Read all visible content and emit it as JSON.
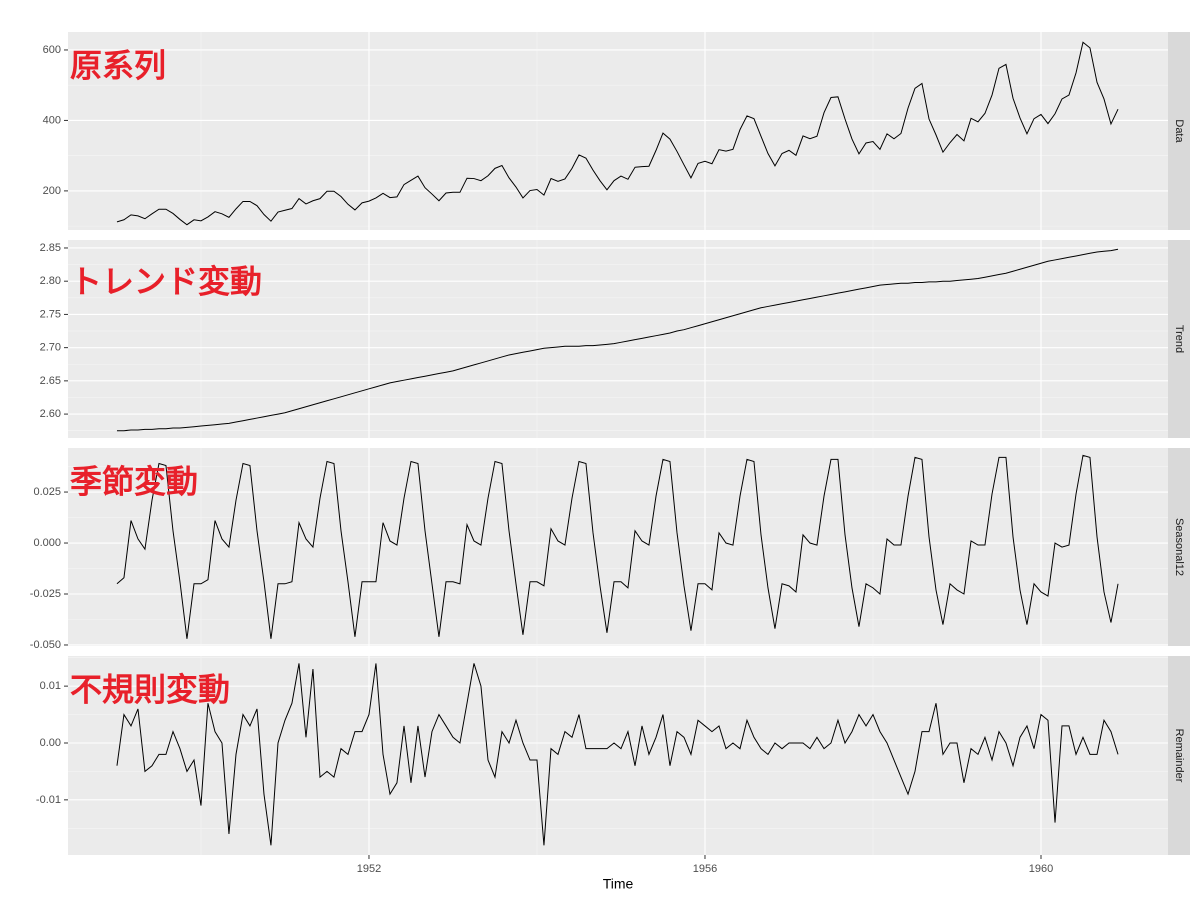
{
  "chart_data": [
    {
      "type": "line",
      "panel_label": "Data",
      "annotation": "原系列",
      "color": "#000000",
      "values": [
        112,
        118,
        132,
        129,
        121,
        135,
        148,
        148,
        136,
        119,
        104,
        118,
        115,
        126,
        141,
        135,
        125,
        149,
        170,
        170,
        158,
        133,
        114,
        140,
        145,
        150,
        178,
        163,
        172,
        178,
        199,
        199,
        184,
        162,
        146,
        166,
        171,
        180,
        193,
        181,
        183,
        218,
        230,
        242,
        209,
        191,
        172,
        194,
        196,
        196,
        236,
        235,
        229,
        243,
        264,
        272,
        237,
        211,
        180,
        201,
        204,
        188,
        235,
        227,
        234,
        264,
        302,
        293,
        259,
        229,
        203,
        229,
        242,
        233,
        267,
        269,
        270,
        315,
        364,
        347,
        312,
        274,
        237,
        278,
        284,
        277,
        317,
        313,
        318,
        374,
        413,
        405,
        355,
        306,
        271,
        306,
        315,
        301,
        356,
        348,
        355,
        422,
        465,
        467,
        404,
        347,
        305,
        336,
        340,
        318,
        362,
        348,
        363,
        435,
        491,
        505,
        404,
        359,
        310,
        337,
        360,
        342,
        406,
        396,
        420,
        472,
        548,
        559,
        463,
        407,
        362,
        405,
        417,
        391,
        419,
        461,
        472,
        535,
        622,
        606,
        508,
        461,
        390,
        432
      ],
      "ylim": [
        89,
        651
      ],
      "yticks": [
        200,
        400,
        600
      ]
    },
    {
      "type": "line",
      "panel_label": "Trend",
      "annotation": "トレンド変動",
      "color": "#000000",
      "values": [
        2.575,
        2.575,
        2.576,
        2.576,
        2.577,
        2.577,
        2.578,
        2.578,
        2.579,
        2.579,
        2.58,
        2.581,
        2.582,
        2.583,
        2.584,
        2.585,
        2.586,
        2.588,
        2.59,
        2.592,
        2.594,
        2.596,
        2.598,
        2.6,
        2.602,
        2.605,
        2.608,
        2.611,
        2.614,
        2.617,
        2.62,
        2.623,
        2.626,
        2.629,
        2.632,
        2.635,
        2.638,
        2.641,
        2.644,
        2.647,
        2.649,
        2.651,
        2.653,
        2.655,
        2.657,
        2.659,
        2.661,
        2.663,
        2.665,
        2.668,
        2.671,
        2.674,
        2.677,
        2.68,
        2.683,
        2.686,
        2.689,
        2.691,
        2.693,
        2.695,
        2.697,
        2.699,
        2.7,
        2.701,
        2.702,
        2.702,
        2.702,
        2.703,
        2.703,
        2.704,
        2.705,
        2.706,
        2.708,
        2.71,
        2.712,
        2.714,
        2.716,
        2.718,
        2.72,
        2.722,
        2.725,
        2.727,
        2.73,
        2.733,
        2.736,
        2.739,
        2.742,
        2.745,
        2.748,
        2.751,
        2.754,
        2.757,
        2.76,
        2.762,
        2.764,
        2.766,
        2.768,
        2.77,
        2.772,
        2.774,
        2.776,
        2.778,
        2.78,
        2.782,
        2.784,
        2.786,
        2.788,
        2.79,
        2.792,
        2.794,
        2.795,
        2.796,
        2.797,
        2.797,
        2.798,
        2.798,
        2.799,
        2.799,
        2.8,
        2.8,
        2.801,
        2.802,
        2.803,
        2.804,
        2.806,
        2.808,
        2.81,
        2.812,
        2.815,
        2.818,
        2.821,
        2.824,
        2.827,
        2.83,
        2.832,
        2.834,
        2.836,
        2.838,
        2.84,
        2.842,
        2.844,
        2.845,
        2.846,
        2.848
      ],
      "ylim": [
        2.564,
        2.862
      ],
      "yticks": [
        {
          "value": 2.6,
          "label": "2.60"
        },
        2.65,
        {
          "value": 2.7,
          "label": "2.70"
        },
        2.75,
        {
          "value": 2.8,
          "label": "2.80"
        },
        2.85
      ]
    },
    {
      "type": "line",
      "panel_label": "Seasonal12",
      "annotation": "季節変動",
      "color": "#000000",
      "values": [
        -0.02,
        -0.017,
        0.011,
        0.002,
        -0.003,
        0.021,
        0.039,
        0.038,
        0.006,
        -0.019,
        -0.047,
        -0.02,
        -0.02,
        -0.018,
        0.011,
        0.002,
        -0.002,
        0.021,
        0.039,
        0.038,
        0.006,
        -0.019,
        -0.047,
        -0.02,
        -0.02,
        -0.019,
        0.01,
        0.002,
        -0.002,
        0.022,
        0.04,
        0.039,
        0.006,
        -0.019,
        -0.046,
        -0.019,
        -0.019,
        -0.019,
        0.01,
        0.001,
        -0.001,
        0.022,
        0.04,
        0.039,
        0.006,
        -0.02,
        -0.046,
        -0.019,
        -0.019,
        -0.02,
        0.009,
        0.001,
        -0.001,
        0.022,
        0.04,
        0.039,
        0.006,
        -0.02,
        -0.045,
        -0.019,
        -0.019,
        -0.021,
        0.007,
        0.001,
        -0.001,
        0.022,
        0.04,
        0.039,
        0.005,
        -0.021,
        -0.044,
        -0.019,
        -0.019,
        -0.022,
        0.006,
        0.001,
        -0.001,
        0.023,
        0.041,
        0.04,
        0.005,
        -0.021,
        -0.043,
        -0.02,
        -0.02,
        -0.023,
        0.005,
        0.0,
        -0.001,
        0.023,
        0.041,
        0.04,
        0.004,
        -0.022,
        -0.042,
        -0.02,
        -0.021,
        -0.024,
        0.004,
        0.0,
        -0.001,
        0.023,
        0.041,
        0.041,
        0.004,
        -0.022,
        -0.041,
        -0.02,
        -0.022,
        -0.025,
        0.002,
        -0.001,
        -0.001,
        0.023,
        0.042,
        0.041,
        0.003,
        -0.023,
        -0.04,
        -0.02,
        -0.023,
        -0.025,
        0.001,
        -0.001,
        -0.001,
        0.024,
        0.042,
        0.042,
        0.003,
        -0.023,
        -0.04,
        -0.02,
        -0.024,
        -0.026,
        0.0,
        -0.002,
        -0.001,
        0.024,
        0.043,
        0.042,
        0.003,
        -0.024,
        -0.039,
        -0.02
      ],
      "ylim": [
        -0.0505,
        0.0466
      ],
      "yticks": [
        {
          "value": -0.05,
          "label": "-0.050"
        },
        -0.025,
        {
          "value": 0,
          "label": "0.000"
        },
        0.025
      ]
    },
    {
      "type": "line",
      "panel_label": "Remainder",
      "annotation": "不規則変動",
      "color": "#000000",
      "xlabel": "Time",
      "x": [
        1949,
        1949.083,
        1949.167,
        1949.25,
        1949.333,
        1949.417,
        1949.5,
        1949.583,
        1949.667,
        1949.75,
        1949.833,
        1949.917,
        1950,
        1950.083,
        1950.167,
        1950.25,
        1950.333,
        1950.417,
        1950.5,
        1950.583,
        1950.667,
        1950.75,
        1950.833,
        1950.917,
        1951,
        1951.083,
        1951.167,
        1951.25,
        1951.333,
        1951.417,
        1951.5,
        1951.583,
        1951.667,
        1951.75,
        1951.833,
        1951.917,
        1952,
        1952.083,
        1952.167,
        1952.25,
        1952.333,
        1952.417,
        1952.5,
        1952.583,
        1952.667,
        1952.75,
        1952.833,
        1952.917,
        1953,
        1953.083,
        1953.167,
        1953.25,
        1953.333,
        1953.417,
        1953.5,
        1953.583,
        1953.667,
        1953.75,
        1953.833,
        1953.917,
        1954,
        1954.083,
        1954.167,
        1954.25,
        1954.333,
        1954.417,
        1954.5,
        1954.583,
        1954.667,
        1954.75,
        1954.833,
        1954.917,
        1955,
        1955.083,
        1955.167,
        1955.25,
        1955.333,
        1955.417,
        1955.5,
        1955.583,
        1955.667,
        1955.75,
        1955.833,
        1955.917,
        1956,
        1956.083,
        1956.167,
        1956.25,
        1956.333,
        1956.417,
        1956.5,
        1956.583,
        1956.667,
        1956.75,
        1956.833,
        1956.917,
        1957,
        1957.083,
        1957.167,
        1957.25,
        1957.333,
        1957.417,
        1957.5,
        1957.583,
        1957.667,
        1957.75,
        1957.833,
        1957.917,
        1958,
        1958.083,
        1958.167,
        1958.25,
        1958.333,
        1958.417,
        1958.5,
        1958.583,
        1958.667,
        1958.75,
        1958.833,
        1958.917,
        1959,
        1959.083,
        1959.167,
        1959.25,
        1959.333,
        1959.417,
        1959.5,
        1959.583,
        1959.667,
        1959.75,
        1959.833,
        1959.917,
        1960,
        1960.083,
        1960.167,
        1960.25,
        1960.333,
        1960.417,
        1960.5,
        1960.583,
        1960.667,
        1960.75,
        1960.833,
        1960.917
      ],
      "values": [
        -0.004,
        0.005,
        0.003,
        0.006,
        -0.005,
        -0.004,
        -0.002,
        -0.002,
        0.002,
        -0.001,
        -0.005,
        -0.003,
        -0.011,
        0.007,
        0.002,
        0.0,
        -0.016,
        -0.002,
        0.005,
        0.003,
        0.006,
        -0.009,
        -0.018,
        0.0,
        0.004,
        0.007,
        0.014,
        0.001,
        0.013,
        -0.006,
        -0.005,
        -0.006,
        -0.001,
        -0.002,
        0.002,
        0.002,
        0.005,
        0.014,
        -0.002,
        -0.009,
        -0.007,
        0.003,
        -0.007,
        0.003,
        -0.006,
        0.002,
        0.005,
        0.003,
        0.001,
        0.0,
        0.007,
        0.014,
        0.01,
        -0.003,
        -0.006,
        0.002,
        0.0,
        0.004,
        0.0,
        -0.003,
        -0.003,
        -0.018,
        -0.001,
        -0.002,
        0.002,
        0.001,
        0.005,
        -0.001,
        -0.001,
        -0.001,
        -0.001,
        0.0,
        -0.001,
        0.002,
        -0.004,
        0.003,
        -0.002,
        0.001,
        0.005,
        -0.004,
        0.002,
        0.001,
        -0.002,
        0.004,
        0.003,
        0.002,
        0.003,
        -0.001,
        0.0,
        -0.001,
        0.004,
        0.001,
        -0.001,
        -0.002,
        0.0,
        -0.001,
        0.0,
        0.0,
        0.0,
        -0.001,
        0.001,
        -0.001,
        0.0,
        0.004,
        0.0,
        0.002,
        0.005,
        0.003,
        0.005,
        0.002,
        0.0,
        -0.003,
        -0.006,
        -0.009,
        -0.005,
        0.002,
        0.002,
        0.007,
        -0.002,
        0.0,
        0.0,
        -0.007,
        -0.001,
        -0.002,
        0.001,
        -0.003,
        0.002,
        0.0,
        -0.004,
        0.001,
        0.003,
        -0.001,
        0.005,
        0.004,
        -0.014,
        0.003,
        0.003,
        -0.002,
        0.001,
        -0.002,
        -0.002,
        0.004,
        0.002,
        -0.002
      ],
      "ylim": [
        -0.0197,
        0.0153
      ],
      "yticks": [
        -0.01,
        {
          "value": 0,
          "label": "0.00"
        },
        0.01
      ],
      "xlim": [
        1948.417,
        1961.512
      ],
      "xticks": [
        1952,
        1956,
        1960
      ]
    }
  ]
}
